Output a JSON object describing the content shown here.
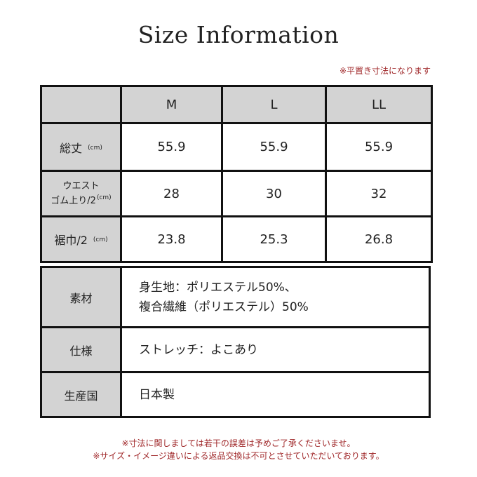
{
  "title": "Size Information",
  "note": "※平置き寸法になります",
  "size_table": {
    "headers": [
      "",
      "M",
      "L",
      "LL"
    ],
    "unit": "(cm)",
    "rows": [
      {
        "label": "総丈",
        "values": [
          "55.9",
          "55.9",
          "55.9"
        ]
      },
      {
        "label_line1": "ウエスト",
        "label_line2": "ゴム上り/2",
        "values": [
          "28",
          "30",
          "32"
        ]
      },
      {
        "label": "裾巾/2",
        "values": [
          "23.8",
          "25.3",
          "26.8"
        ]
      }
    ]
  },
  "spec_table": [
    {
      "label": "素材",
      "value_line1": "身生地：ポリエステル50%、",
      "value_line2": "複合繊維（ポリエステル）50%"
    },
    {
      "label": "仕様",
      "value": "ストレッチ：よこあり"
    },
    {
      "label": "生産国",
      "value": "日本製"
    }
  ],
  "footer": [
    "※寸法に関しましては若干の誤差は予めご了承くださいませ。",
    "※サイズ・イメージ違いによる返品交換は不可とさせていただいております。"
  ],
  "colors": {
    "header_bg": "#d3d3d3",
    "border": "#111111",
    "note_red": "#a0282a"
  }
}
